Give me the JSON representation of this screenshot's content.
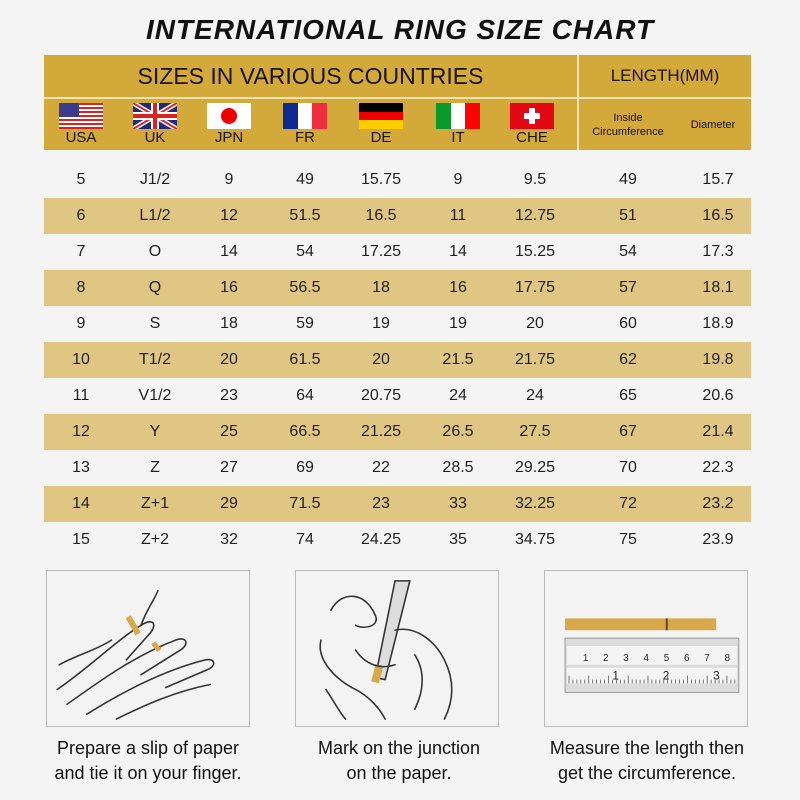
{
  "title": "INTERNATIONAL RING SIZE CHART",
  "header": {
    "countries_title": "SIZES IN VARIOUS COUNTRIES",
    "length_title": "LENGTH(MM)",
    "countries": [
      {
        "code": "USA",
        "flag": "us-flag-icon"
      },
      {
        "code": "UK",
        "flag": "uk-flag-icon"
      },
      {
        "code": "JPN",
        "flag": "japan-flag-icon"
      },
      {
        "code": "FR",
        "flag": "france-flag-icon"
      },
      {
        "code": "DE",
        "flag": "germany-flag-icon"
      },
      {
        "code": "IT",
        "flag": "italy-flag-icon"
      },
      {
        "code": "CHE",
        "flag": "switzerland-flag-icon"
      }
    ],
    "inside_circumference": "Inside Circumference",
    "diameter": "Diameter"
  },
  "colors": {
    "header": "#d3a939",
    "stripe": "#e0c683",
    "background": "#f4f4f4"
  },
  "rows": [
    [
      "5",
      "J1/2",
      "9",
      "49",
      "15.75",
      "9",
      "9.5",
      "49",
      "15.7"
    ],
    [
      "6",
      "L1/2",
      "12",
      "51.5",
      "16.5",
      "11",
      "12.75",
      "51",
      "16.5"
    ],
    [
      "7",
      "O",
      "14",
      "54",
      "17.25",
      "14",
      "15.25",
      "54",
      "17.3"
    ],
    [
      "8",
      "Q",
      "16",
      "56.5",
      "18",
      "16",
      "17.75",
      "57",
      "18.1"
    ],
    [
      "9",
      "S",
      "18",
      "59",
      "19",
      "19",
      "20",
      "60",
      "18.9"
    ],
    [
      "10",
      "T1/2",
      "20",
      "61.5",
      "20",
      "21.5",
      "21.75",
      "62",
      "19.8"
    ],
    [
      "11",
      "V1/2",
      "23",
      "64",
      "20.75",
      "24",
      "24",
      "65",
      "20.6"
    ],
    [
      "12",
      "Y",
      "25",
      "66.5",
      "21.25",
      "26.5",
      "27.5",
      "67",
      "21.4"
    ],
    [
      "13",
      "Z",
      "27",
      "69",
      "22",
      "28.5",
      "29.25",
      "70",
      "22.3"
    ],
    [
      "14",
      "Z+1",
      "29",
      "71.5",
      "23",
      "33",
      "32.25",
      "72",
      "23.2"
    ],
    [
      "15",
      "Z+2",
      "32",
      "74",
      "24.25",
      "35",
      "34.75",
      "75",
      "23.9"
    ]
  ],
  "steps": [
    {
      "line1": "Prepare a slip of paper",
      "line2": "and tie it on your finger."
    },
    {
      "line1": "Mark on the junction",
      "line2": "on the paper."
    },
    {
      "line1": "Measure the length then",
      "line2": "get the circumference."
    }
  ],
  "ruler": {
    "top_marks": [
      "1",
      "2",
      "3",
      "4",
      "5",
      "6",
      "7",
      "8"
    ],
    "bottom_marks": [
      "1",
      "2",
      "3"
    ]
  }
}
